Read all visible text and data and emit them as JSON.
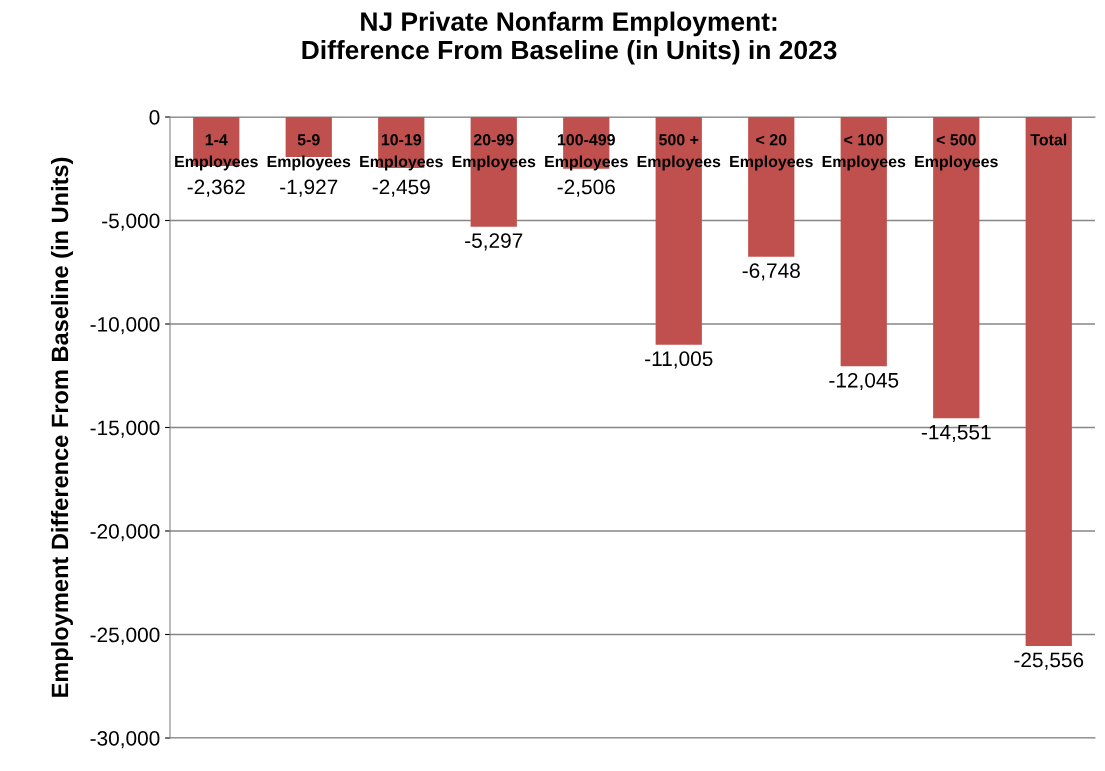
{
  "chart_data": {
    "type": "bar",
    "title": "NJ Private Nonfarm Employment:\nDifference From Baseline (in Units) in 2023",
    "ylabel": "Employment Difference From Baseline (in Units)",
    "categories": [
      "1-4\nEmployees",
      "5-9\nEmployees",
      "10-19\nEmployees",
      "20-99\nEmployees",
      "100-499\nEmployees",
      "500 +\nEmployees",
      "< 20\nEmployees",
      "< 100\nEmployees",
      "< 500\nEmployees",
      "Total"
    ],
    "values": [
      -2362,
      -1927,
      -2459,
      -5297,
      -2506,
      -11005,
      -6748,
      -12045,
      -14551,
      -25556
    ],
    "value_labels": [
      "-2,362",
      "-1,927",
      "-2,459",
      "-5,297",
      "-2,506",
      "-11,005",
      "-6,748",
      "-12,045",
      "-14,551",
      "-25,556"
    ],
    "color": "#c0504d",
    "ylim": [
      -30000,
      0
    ],
    "yticks": [
      {
        "value": 0,
        "label": "0"
      },
      {
        "value": -5000,
        "label": "-5,000"
      },
      {
        "value": -10000,
        "label": "-10,000"
      },
      {
        "value": -15000,
        "label": "-15,000"
      },
      {
        "value": -20000,
        "label": "-20,000"
      },
      {
        "value": -25000,
        "label": "-25,000"
      },
      {
        "value": -30000,
        "label": "-30,000"
      }
    ],
    "grid": "y"
  }
}
